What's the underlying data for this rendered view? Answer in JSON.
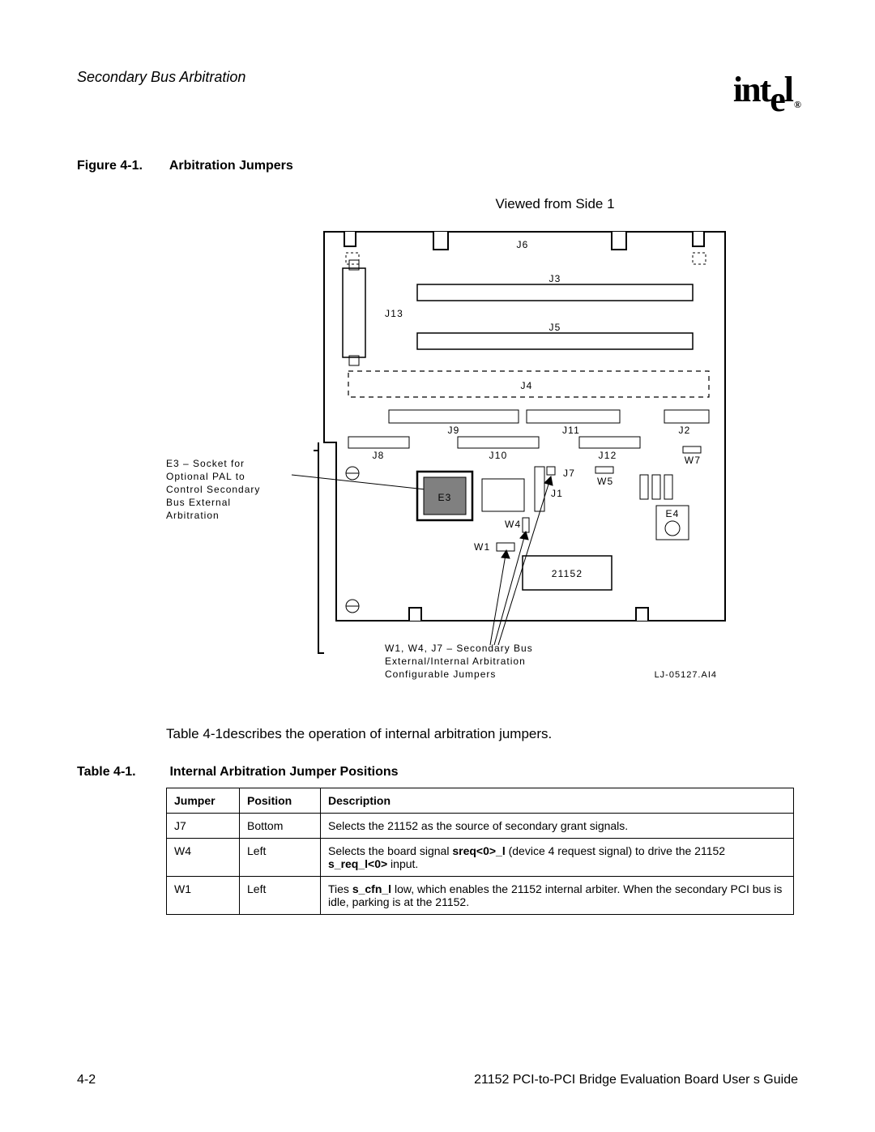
{
  "header": {
    "section": "Secondary Bus Arbitration",
    "logo_text": "intel",
    "registered": "®"
  },
  "figure": {
    "label": "Figure 4-1.",
    "title": "Arbitration Jumpers",
    "view": "Viewed from Side 1",
    "leader_note_lines": [
      "E3 – Socket for",
      "Optional PAL to",
      "Control Secondary",
      "Bus External",
      "Arbitration"
    ],
    "bottom_note_lines": [
      "W1, W4, J7 – Secondary Bus",
      "External/Internal Arbitration",
      "Configurable Jumpers"
    ],
    "ref": "LJ-05127.AI4",
    "chip": "21152",
    "labels": {
      "J6": "J6",
      "J3": "J3",
      "J5": "J5",
      "J4": "J4",
      "J9": "J9",
      "J11": "J11",
      "J2": "J2",
      "J8": "J8",
      "J10": "J10",
      "J12": "J12",
      "W7": "W7",
      "J7": "J7",
      "W5": "W5",
      "E3": "E3",
      "J1": "J1",
      "J13": "J13",
      "W4": "W4",
      "E4": "E4",
      "W1": "W1"
    },
    "colors": {
      "board_stroke": "#000000",
      "chip_fill": "#808080",
      "background": "#ffffff"
    }
  },
  "body": {
    "para": "Table 4-1describes the operation of  internal arbitration jumpers."
  },
  "table": {
    "label": "Table 4-1.",
    "title": "Internal Arbitration Jumper Positions",
    "headers": [
      "Jumper",
      "Position",
      "Description"
    ],
    "rows": [
      {
        "jumper": "J7",
        "position": "Bottom",
        "desc_parts": [
          "Selects the 21152 as the source of secondary grant signals."
        ]
      },
      {
        "jumper": "W4",
        "position": "Left",
        "desc_parts": [
          "Selects the board signal ",
          "sreq<0>_l",
          " (device 4 request signal) to drive the 21152 ",
          "s_req_l<0>",
          " input."
        ],
        "bold_indices": [
          1,
          3
        ]
      },
      {
        "jumper": "W1",
        "position": "Left",
        "desc_parts": [
          "Ties ",
          "s_cfn_l",
          "  low, which enables the 21152 internal arbiter. When the secondary PCI bus is idle, parking is at the 21152."
        ],
        "bold_indices": [
          1
        ]
      }
    ]
  },
  "footer": {
    "left": "4-2",
    "right": "21152 PCI-to-PCI Bridge Evaluation Board User s Guide"
  }
}
